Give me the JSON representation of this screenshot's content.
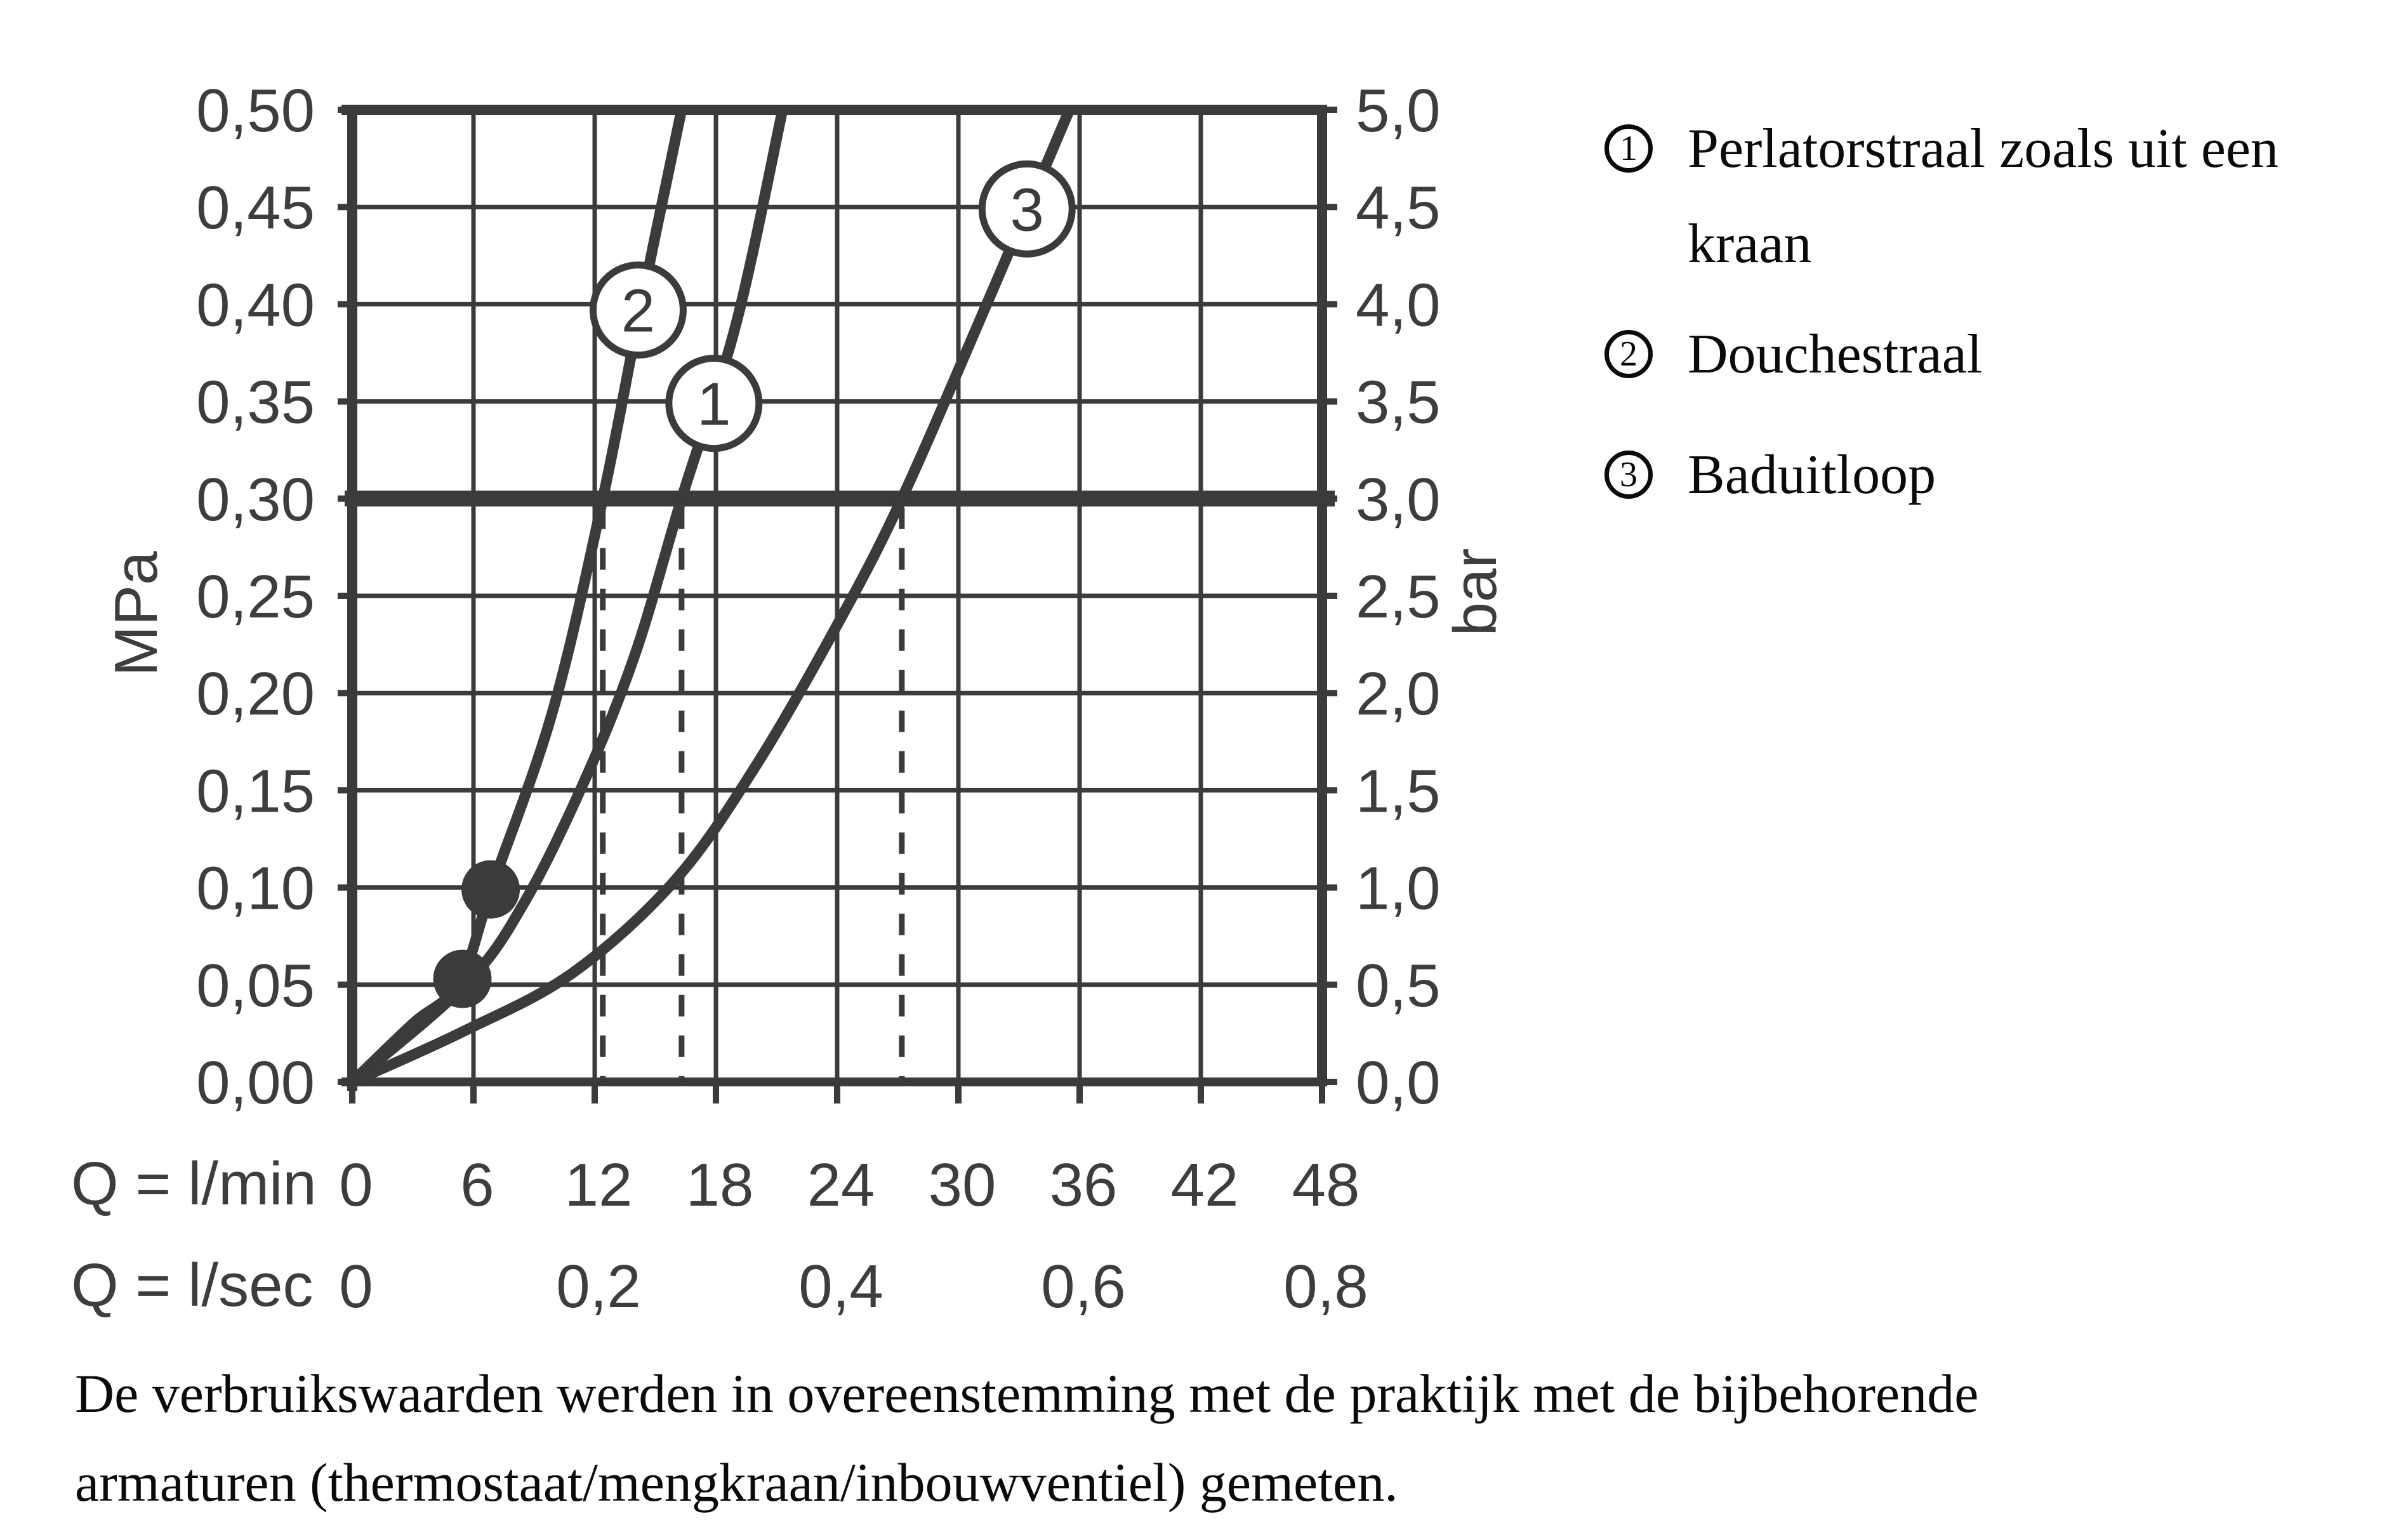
{
  "colors": {
    "chart_stroke": "#3b3b3b",
    "axis_label": "#3d3d3d",
    "text": "#0a0a0a",
    "background": "#ffffff"
  },
  "chart_data": {
    "type": "line",
    "title": "",
    "x_axis": {
      "row1_unit_label": "Q = l/min",
      "row2_unit_label": "Q = l/sec",
      "row1_ticks": [
        {
          "q": 0,
          "label": "0"
        },
        {
          "q": 6,
          "label": "6"
        },
        {
          "q": 12,
          "label": "12"
        },
        {
          "q": 18,
          "label": "18"
        },
        {
          "q": 24,
          "label": "24"
        },
        {
          "q": 30,
          "label": "30"
        },
        {
          "q": 36,
          "label": "36"
        },
        {
          "q": 42,
          "label": "42"
        },
        {
          "q": 48,
          "label": "48"
        }
      ],
      "row2_ticks": [
        {
          "q": 0,
          "label": "0"
        },
        {
          "q": 12,
          "label": "0,2"
        },
        {
          "q": 24,
          "label": "0,4"
        },
        {
          "q": 36,
          "label": "0,6"
        },
        {
          "q": 48,
          "label": "0,8"
        }
      ],
      "range_lmin": [
        0,
        48
      ],
      "gridline_step_lmin": 6
    },
    "y_left": {
      "unit": "MPa",
      "range_mpa": [
        0,
        0.5
      ],
      "ticks": [
        {
          "p": 0.5,
          "label": "0,50"
        },
        {
          "p": 0.45,
          "label": "0,45"
        },
        {
          "p": 0.4,
          "label": "0,40"
        },
        {
          "p": 0.35,
          "label": "0,35"
        },
        {
          "p": 0.3,
          "label": "0,30"
        },
        {
          "p": 0.25,
          "label": "0,25"
        },
        {
          "p": 0.2,
          "label": "0,20"
        },
        {
          "p": 0.15,
          "label": "0,15"
        },
        {
          "p": 0.1,
          "label": "0,10"
        },
        {
          "p": 0.05,
          "label": "0,05"
        },
        {
          "p": 0.0,
          "label": "0,00"
        }
      ]
    },
    "y_right": {
      "unit": "bar",
      "ticks": [
        {
          "p": 0.5,
          "label": "5,0"
        },
        {
          "p": 0.45,
          "label": "4,5"
        },
        {
          "p": 0.4,
          "label": "4,0"
        },
        {
          "p": 0.35,
          "label": "3,5"
        },
        {
          "p": 0.3,
          "label": "3,0"
        },
        {
          "p": 0.25,
          "label": "2,5"
        },
        {
          "p": 0.2,
          "label": "2,0"
        },
        {
          "p": 0.15,
          "label": "1,5"
        },
        {
          "p": 0.1,
          "label": "1,0"
        },
        {
          "p": 0.05,
          "label": "0,5"
        },
        {
          "p": 0.0,
          "label": "0,0"
        }
      ]
    },
    "grid": true,
    "reference_line": {
      "p_mpa": 0.3,
      "value_bar": 3.0
    },
    "dashed_drop_lines_lmin": [
      12.4,
      16.3,
      27.2
    ],
    "series": [
      {
        "number": "1",
        "name": "Perlatorstraal zoals uit een kraan",
        "points_lmin_mpa": [
          [
            0,
            0
          ],
          [
            5.6,
            0.05
          ],
          [
            8.5,
            0.092
          ],
          [
            11.5,
            0.155
          ],
          [
            14,
            0.22
          ],
          [
            16.3,
            0.3
          ],
          [
            19,
            0.39
          ],
          [
            21.3,
            0.5
          ]
        ],
        "marker": {
          "q": 17.9,
          "p": 0.349
        },
        "dot": {
          "q": 5.45,
          "p": 0.053
        }
      },
      {
        "number": "2",
        "name": "Douchestraal",
        "points_lmin_mpa": [
          [
            0,
            0
          ],
          [
            3,
            0.03
          ],
          [
            5.3,
            0.051
          ],
          [
            6.9,
            0.1
          ],
          [
            9.9,
            0.19
          ],
          [
            12.4,
            0.3
          ],
          [
            14.3,
            0.4
          ],
          [
            16.3,
            0.5
          ]
        ],
        "marker": {
          "q": 14.15,
          "p": 0.397
        },
        "dot": {
          "q": 6.85,
          "p": 0.099
        }
      },
      {
        "number": "3",
        "name": "Baduitloop",
        "points_lmin_mpa": [
          [
            0,
            0
          ],
          [
            5.5,
            0.026
          ],
          [
            10.9,
            0.056
          ],
          [
            16,
            0.104
          ],
          [
            20,
            0.163
          ],
          [
            24,
            0.235
          ],
          [
            27.2,
            0.3
          ],
          [
            31.4,
            0.4
          ],
          [
            35.5,
            0.5
          ]
        ],
        "marker": {
          "q": 33.4,
          "p": 0.449
        }
      }
    ]
  },
  "legend": {
    "items": [
      {
        "number": "1",
        "lines": [
          "Perlatorstraal zoals uit een",
          "kraan"
        ]
      },
      {
        "number": "2",
        "lines": [
          "Douchestraal"
        ]
      },
      {
        "number": "3",
        "lines": [
          "Baduitloop"
        ]
      }
    ]
  },
  "footnote": {
    "lines": [
      "De verbruikswaarden werden in overeenstemming met de praktijk met de bijbehorende",
      "armaturen (thermostaat/mengkraan/inbouwventiel) gemeten."
    ]
  }
}
